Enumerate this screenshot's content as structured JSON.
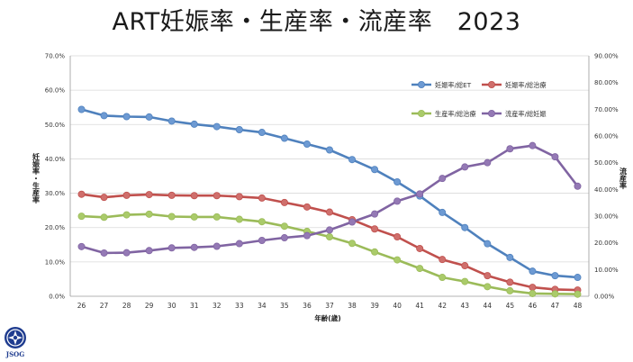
{
  "title": "ART妊娠率・生産率・流産率　2023",
  "logo": {
    "text": "JSOG",
    "icon": "jsog-logo-icon"
  },
  "chart_data": {
    "type": "line",
    "title": "ART妊娠率・生産率・流産率　2023",
    "x": [
      26,
      27,
      28,
      29,
      30,
      31,
      32,
      33,
      34,
      35,
      36,
      37,
      38,
      39,
      40,
      41,
      42,
      43,
      44,
      45,
      46,
      47,
      48
    ],
    "xlabel": "年齢(歳)",
    "ylabel": "妊娠率・生産率",
    "y2label": "流産率",
    "ylim": [
      0,
      70
    ],
    "y2lim": [
      0,
      90
    ],
    "yticks": [
      "0.0%",
      "10.0%",
      "20.0%",
      "30.0%",
      "40.0%",
      "50.0%",
      "60.0%",
      "70.0%"
    ],
    "y2ticks": [
      "0.00%",
      "10.00%",
      "20.00%",
      "30.00%",
      "40.00%",
      "50.00%",
      "60.00%",
      "70.00%",
      "80.00%",
      "90.00%"
    ],
    "grid": true,
    "legend": "right",
    "series": [
      {
        "name": "妊娠率/総ET",
        "axis": "left",
        "color": "#4f81bd",
        "marker": "#6d9ad3",
        "values": [
          54.4,
          52.6,
          52.3,
          52.2,
          51.0,
          50.1,
          49.4,
          48.5,
          47.7,
          46.0,
          44.3,
          42.6,
          39.8,
          36.9,
          33.3,
          29.2,
          24.4,
          20.0,
          15.3,
          11.3,
          7.3,
          6.0,
          5.5
        ]
      },
      {
        "name": "妊娠率/総治療",
        "axis": "left",
        "color": "#c0504d",
        "marker": "#cf6f6c",
        "values": [
          29.7,
          28.8,
          29.4,
          29.6,
          29.4,
          29.3,
          29.3,
          29.0,
          28.6,
          27.3,
          26.0,
          24.5,
          22.3,
          19.6,
          17.3,
          13.9,
          10.7,
          8.9,
          6.0,
          4.1,
          2.6,
          2.0,
          1.8
        ]
      },
      {
        "name": "生産率/総治療",
        "axis": "left",
        "color": "#9bbb59",
        "marker": "#aacb6a",
        "values": [
          23.3,
          23.0,
          23.7,
          23.9,
          23.2,
          23.1,
          23.1,
          22.4,
          21.7,
          20.4,
          18.9,
          17.3,
          15.4,
          12.9,
          10.6,
          8.1,
          5.5,
          4.3,
          2.8,
          1.6,
          0.8,
          0.7,
          0.6
        ]
      },
      {
        "name": "流産率/総妊娠",
        "axis": "right",
        "color": "#8064a2",
        "marker": "#9479b5",
        "values": [
          18.6,
          16.2,
          16.3,
          17.1,
          18.1,
          18.3,
          18.7,
          19.7,
          20.9,
          21.9,
          22.7,
          24.8,
          27.8,
          30.8,
          35.6,
          38.3,
          44.1,
          48.4,
          50.0,
          55.2,
          56.4,
          52.2,
          41.2
        ]
      }
    ]
  }
}
